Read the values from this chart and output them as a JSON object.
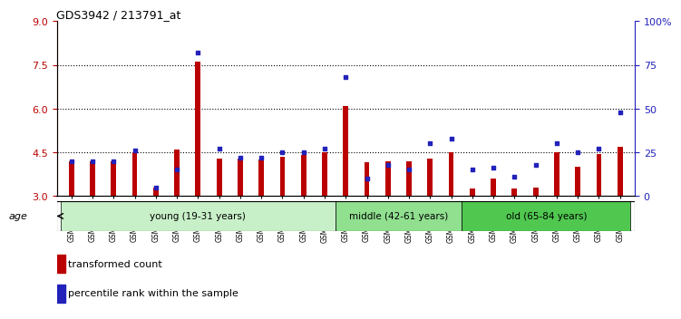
{
  "title": "GDS3942 / 213791_at",
  "samples": [
    "GSM812988",
    "GSM812989",
    "GSM812990",
    "GSM812991",
    "GSM812992",
    "GSM812993",
    "GSM812994",
    "GSM812995",
    "GSM812996",
    "GSM812997",
    "GSM812998",
    "GSM812999",
    "GSM813000",
    "GSM813001",
    "GSM813002",
    "GSM813003",
    "GSM813004",
    "GSM813005",
    "GSM813006",
    "GSM813007",
    "GSM813008",
    "GSM813009",
    "GSM813010",
    "GSM813011",
    "GSM813012",
    "GSM813013",
    "GSM813014"
  ],
  "red_values": [
    4.2,
    4.2,
    4.2,
    4.5,
    3.3,
    4.6,
    7.6,
    4.3,
    4.3,
    4.25,
    4.35,
    4.4,
    4.5,
    6.1,
    4.15,
    4.2,
    4.2,
    4.3,
    4.5,
    3.25,
    3.6,
    3.25,
    3.3,
    4.5,
    4.0,
    4.45,
    4.7
  ],
  "blue_values_pct": [
    20,
    20,
    20,
    26,
    5,
    15,
    82,
    27,
    22,
    22,
    25,
    25,
    27,
    68,
    10,
    18,
    15,
    30,
    33,
    15,
    16,
    11,
    18,
    30,
    25,
    27,
    48
  ],
  "groups": [
    {
      "label": "young (19-31 years)",
      "start": 0,
      "end": 13,
      "color": "#c8f0c8"
    },
    {
      "label": "middle (42-61 years)",
      "start": 13,
      "end": 19,
      "color": "#90e090"
    },
    {
      "label": "old (65-84 years)",
      "start": 19,
      "end": 27,
      "color": "#50c850"
    }
  ],
  "ylim_left": [
    3.0,
    9.0
  ],
  "ylim_right": [
    0,
    100
  ],
  "yticks_left": [
    3.0,
    4.5,
    6.0,
    7.5,
    9.0
  ],
  "yticks_right": [
    0,
    25,
    50,
    75,
    100
  ],
  "hlines": [
    4.5,
    6.0,
    7.5
  ],
  "red_color": "#bb0000",
  "blue_color": "#2222bb",
  "bg_color": "#ffffff"
}
